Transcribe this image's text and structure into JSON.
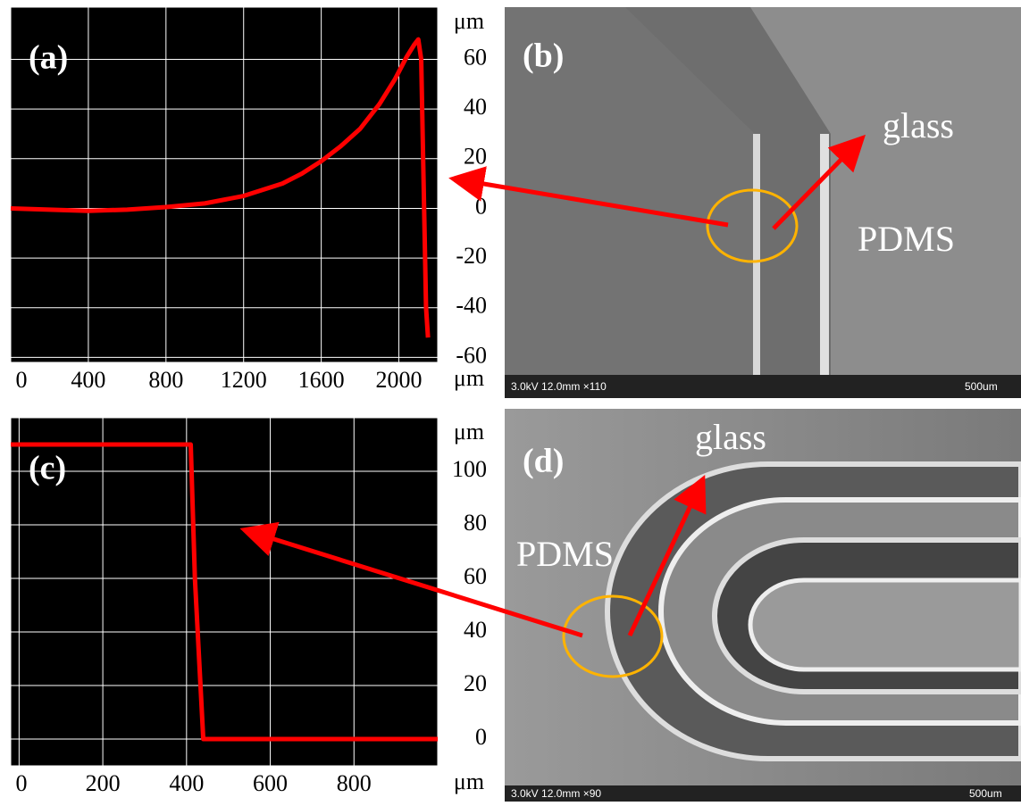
{
  "chart_data": [
    {
      "type": "line",
      "panel_label": "(a)",
      "y_unit": "μm",
      "x_unit": "μm",
      "x": [
        0,
        200,
        400,
        600,
        800,
        1000,
        1200,
        1400,
        1500,
        1600,
        1700,
        1800,
        1900,
        1980,
        2040,
        2080,
        2100,
        2115,
        2130,
        2140,
        2150
      ],
      "series": [
        {
          "color": "#ff0000",
          "values": [
            0,
            -0.5,
            -1,
            -0.5,
            0.5,
            2,
            5,
            10,
            14,
            19,
            25,
            32,
            42,
            52,
            61,
            66,
            68,
            60,
            0,
            -40,
            -52
          ]
        }
      ],
      "xlim": [
        0,
        2200
      ],
      "xticks": [
        0,
        400,
        800,
        1200,
        1600,
        2000
      ],
      "ylim": [
        -62,
        81
      ],
      "yticks": [
        -60,
        -40,
        -20,
        0,
        20,
        40,
        60
      ],
      "grid": true
    },
    {
      "type": "line",
      "panel_label": "(c)",
      "y_unit": "μm",
      "x_unit": "μm",
      "x": [
        -20,
        200,
        410,
        420,
        440,
        600,
        800,
        1000
      ],
      "series": [
        {
          "color": "#ff0000",
          "values": [
            110,
            110,
            110,
            60,
            0,
            0,
            0,
            0
          ]
        }
      ],
      "xlim": [
        -20,
        1000
      ],
      "xticks": [
        0,
        200,
        400,
        600,
        800
      ],
      "ylim": [
        -10,
        120
      ],
      "yticks": [
        0,
        20,
        40,
        60,
        80,
        100
      ],
      "grid": true
    }
  ],
  "images": [
    {
      "panel_label": "(b)",
      "glass": "glass",
      "pdms": "PDMS",
      "info": "3.0kV 12.0mm ×110",
      "scale": "500um"
    },
    {
      "panel_label": "(d)",
      "glass": "glass",
      "pdms": "PDMS",
      "info": "3.0kV 12.0mm ×90",
      "scale": "500um"
    }
  ]
}
